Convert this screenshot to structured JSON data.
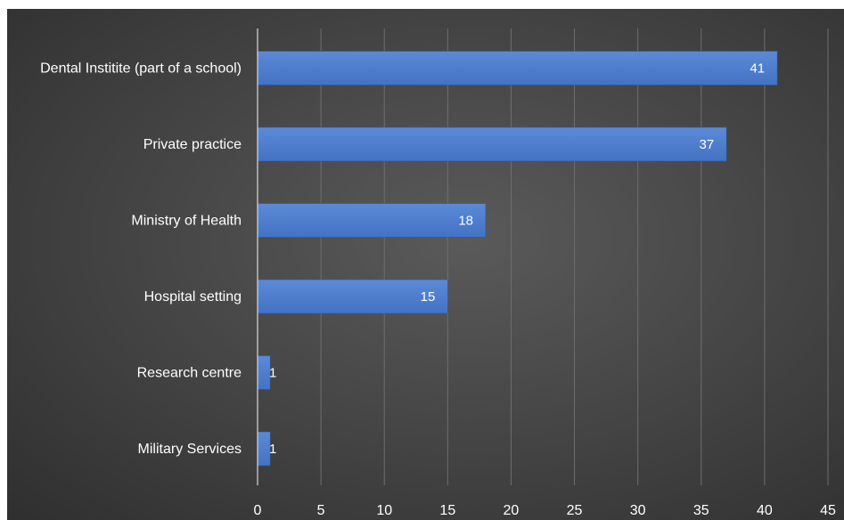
{
  "chart_data": {
    "type": "bar",
    "orientation": "horizontal",
    "categories": [
      "Dental Institite (part of a school)",
      "Private practice",
      "Ministry of Health",
      "Hospital setting",
      "Research centre",
      "Military Services"
    ],
    "values": [
      41,
      37,
      18,
      15,
      1,
      1
    ],
    "data_labels": [
      "41",
      "37",
      "18",
      "15",
      "1",
      "1"
    ],
    "x_ticks": [
      "0",
      "5",
      "10",
      "15",
      "20",
      "25",
      "30",
      "35",
      "40",
      "45"
    ],
    "xlim": [
      0,
      45
    ],
    "grid": true,
    "bar_color": "#4472c4",
    "background_color": "#404040",
    "text_color": "#ffffff"
  }
}
